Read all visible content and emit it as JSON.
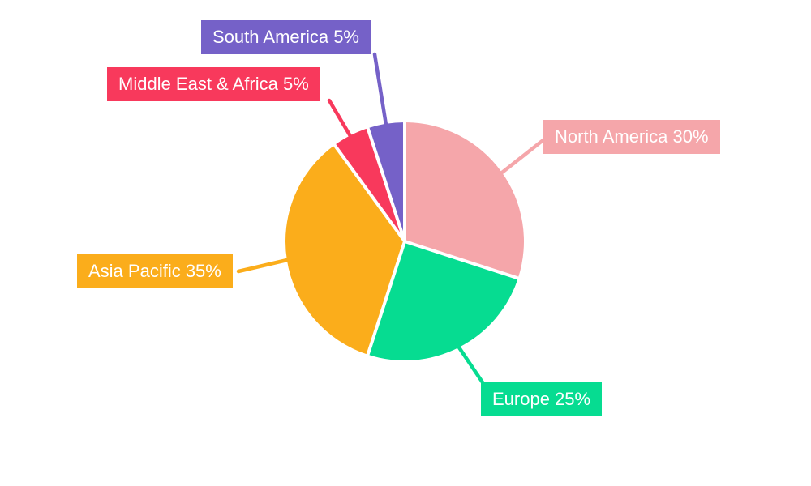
{
  "page": {
    "background_color": "#ffffff"
  },
  "chart_data": {
    "type": "pie",
    "title": "",
    "unit": "%",
    "start_angle_deg": 0,
    "direction": "clockwise",
    "legend": "none",
    "label_style": "colored boxes with white text connected by leader lines matching slice color",
    "slices": [
      {
        "id": "north-america",
        "label": "North America",
        "value": 30,
        "label_text": "North America 30%",
        "color": "#F5A6AA"
      },
      {
        "id": "europe",
        "label": "Europe",
        "value": 25,
        "label_text": "Europe 25%",
        "color": "#06DC91"
      },
      {
        "id": "asia-pacific",
        "label": "Asia Pacific",
        "value": 35,
        "label_text": "Asia Pacific 35%",
        "color": "#FBAD1B"
      },
      {
        "id": "middle-east-africa",
        "label": "Middle East & Africa",
        "value": 5,
        "label_text": "Middle East & Africa 5%",
        "color": "#F8395C"
      },
      {
        "id": "south-america",
        "label": "South America",
        "value": 5,
        "label_text": "South America 5%",
        "color": "#7561C8"
      }
    ]
  }
}
